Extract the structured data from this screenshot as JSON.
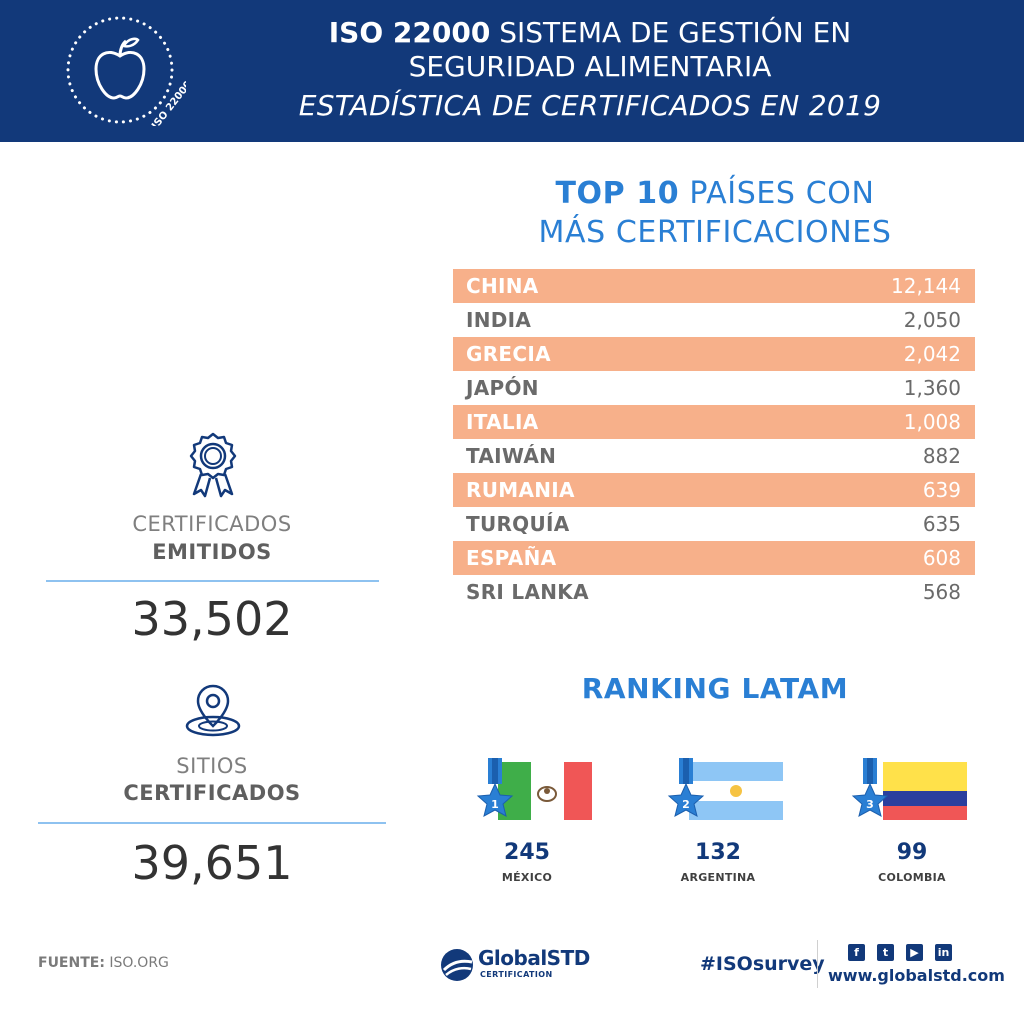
{
  "header": {
    "badge_label": "ISO 22000",
    "line1_bold": "ISO 22000",
    "line1_rest": " SISTEMA DE GESTIÓN EN",
    "line2": "SEGURIDAD ALIMENTARIA",
    "line3": "ESTADÍSTICA DE CERTIFICADOS EN 2019",
    "bg_color": "#12397a"
  },
  "stats": [
    {
      "label1": "CERTIFICADOS",
      "label2": "EMITIDOS",
      "value": "33,502",
      "icon": "award-ribbon-icon"
    },
    {
      "label1": "SITIOS",
      "label2": "CERTIFICADOS",
      "value": "39,651",
      "icon": "location-pin-icon"
    }
  ],
  "top10": {
    "title_bold": "TOP 10",
    "title_rest": " PAÍSES CON",
    "title_line2": "MÁS CERTIFICACIONES",
    "highlight_color": "#f7b08a",
    "rows": [
      {
        "country": "CHINA",
        "value": "12,144"
      },
      {
        "country": "INDIA",
        "value": "2,050"
      },
      {
        "country": "GRECIA",
        "value": "2,042"
      },
      {
        "country": "JAPÓN",
        "value": "1,360"
      },
      {
        "country": "ITALIA",
        "value": "1,008"
      },
      {
        "country": "TAIWÁN",
        "value": "882"
      },
      {
        "country": "RUMANIA",
        "value": "639"
      },
      {
        "country": "TURQUÍA",
        "value": "635"
      },
      {
        "country": "ESPAÑA",
        "value": "608"
      },
      {
        "country": "SRI LANKA",
        "value": "568"
      }
    ]
  },
  "ranking": {
    "title": "RANKING LATAM",
    "items": [
      {
        "rank": "1",
        "value": "245",
        "country": "MÉXICO"
      },
      {
        "rank": "2",
        "value": "132",
        "country": "ARGENTINA"
      },
      {
        "rank": "3",
        "value": "99",
        "country": "COLOMBIA"
      }
    ]
  },
  "footer": {
    "source_label": "FUENTE:",
    "source_value": " ISO.ORG",
    "logo_main": "GlobalSTD",
    "logo_sub": "CERTIFICATION",
    "hashtag": "#ISOsurvey",
    "website": "www.globalstd.com",
    "social_icons": [
      "facebook-icon",
      "twitter-icon",
      "youtube-icon",
      "linkedin-icon"
    ]
  }
}
